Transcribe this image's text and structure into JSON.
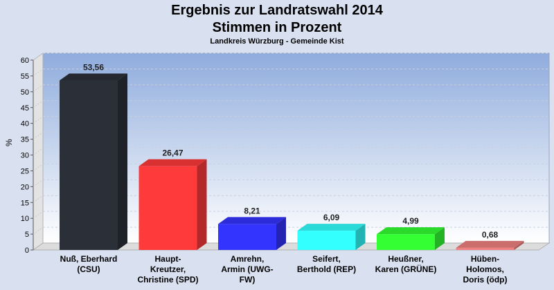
{
  "chart_data": {
    "type": "bar",
    "title": "Ergebnis zur Landratswahl 2014",
    "title_line2": "Stimmen in Prozent",
    "subtitle": "Landkreis Würzburg - Gemeinde Kist",
    "ylabel": "%",
    "ylim": [
      0,
      60
    ],
    "yticks": [
      0,
      5,
      10,
      15,
      20,
      25,
      30,
      35,
      40,
      45,
      50,
      55,
      60
    ],
    "grid": true,
    "categories": [
      [
        "Nuß, Eberhard",
        "(CSU)"
      ],
      [
        "Haupt-",
        "Kreutzer,",
        "Christine (SPD)"
      ],
      [
        "Amrehn,",
        "Armin (UWG-",
        "FW)"
      ],
      [
        "Seifert,",
        "Berthold (REP)"
      ],
      [
        "Heußner,",
        "Karen (GRÜNE)"
      ],
      [
        "Hüben-",
        "Holomos,",
        "Doris (ödp)"
      ]
    ],
    "values": [
      53.56,
      26.47,
      8.21,
      6.09,
      4.99,
      0.68
    ],
    "value_labels": [
      "53,56",
      "26,47",
      "8,21",
      "6,09",
      "4,99",
      "0,68"
    ],
    "colors": [
      "#2b2f38",
      "#ff3a3a",
      "#3434ff",
      "#33ffff",
      "#33ff33",
      "#f08080"
    ]
  }
}
